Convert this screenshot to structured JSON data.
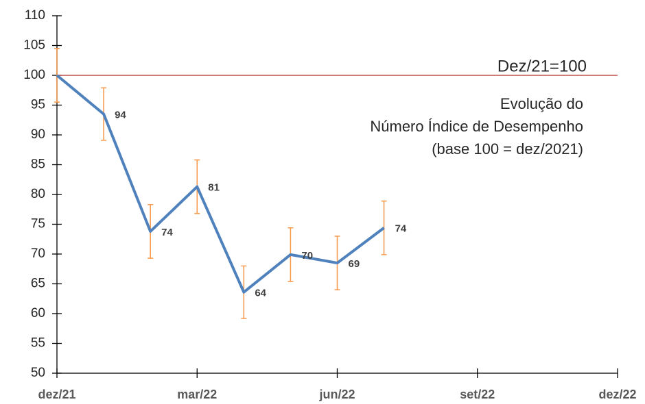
{
  "chart_data": {
    "type": "line",
    "categories": [
      "dez/21",
      null,
      null,
      "mar/22",
      null,
      null,
      "jun/22",
      null,
      null,
      "set/22",
      null,
      null,
      "dez/22"
    ],
    "series": [
      {
        "color": "#4f81bd",
        "error_color": "#f79646",
        "values": [
          100,
          93.5,
          73.8,
          81.3,
          63.6,
          69.9,
          68.5,
          74.4,
          null,
          null,
          null,
          null,
          null
        ],
        "errors": [
          4.5,
          4.4,
          4.5,
          4.5,
          4.4,
          4.5,
          4.5,
          4.5,
          null,
          null,
          null,
          null,
          null
        ],
        "value_labels": [
          null,
          "94",
          "74",
          "81",
          "64",
          "70",
          "69",
          "74",
          null,
          null,
          null,
          null,
          null
        ]
      }
    ],
    "ylim": [
      50,
      110
    ],
    "yticks": [
      50,
      55,
      60,
      65,
      70,
      75,
      80,
      85,
      90,
      95,
      100,
      105,
      110
    ],
    "reference_line": {
      "value": 100,
      "label": "Dez/21=100",
      "color": "#c0504d"
    },
    "annotation": [
      "Evolução do",
      "Número Índice de Desempenho",
      "(base 100 = dez/2021)"
    ],
    "grid": false
  }
}
